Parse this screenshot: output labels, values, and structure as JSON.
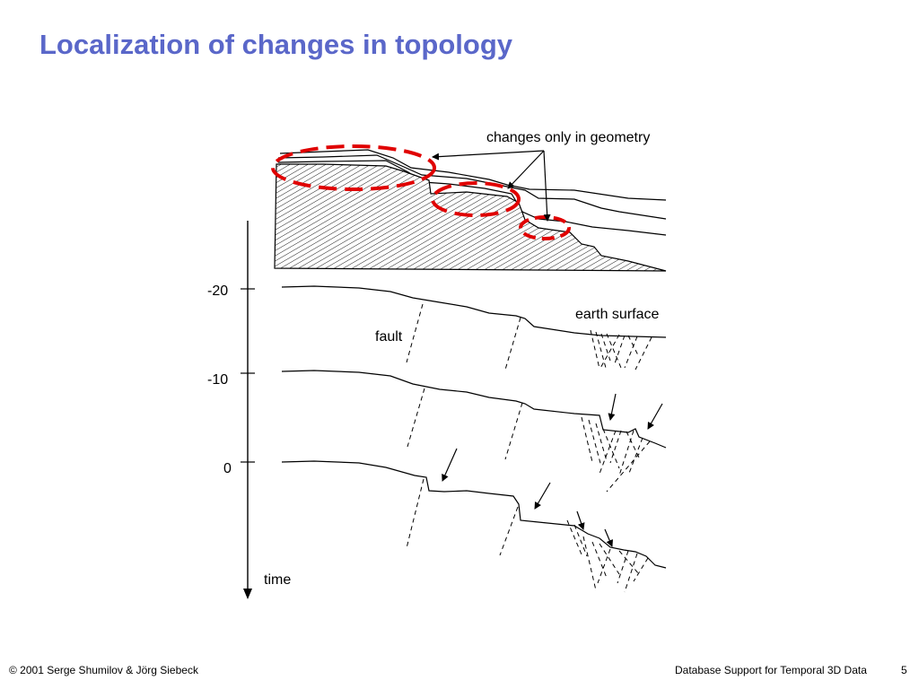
{
  "slide": {
    "title": "Localization of changes in topology",
    "page_number": "5"
  },
  "diagram": {
    "callout_label": "changes only in geometry",
    "earth_surface_label": "earth surface",
    "fault_label": "fault",
    "time_axis": {
      "label": "time",
      "ticks": [
        "-20",
        "-10",
        "0"
      ]
    },
    "colors": {
      "highlight": "#e00000",
      "ink": "#000000"
    }
  },
  "footer": {
    "copyright": "© 2001 Serge Shumilov & Jörg Siebeck",
    "course": "Database Support for Temporal 3D Data"
  }
}
